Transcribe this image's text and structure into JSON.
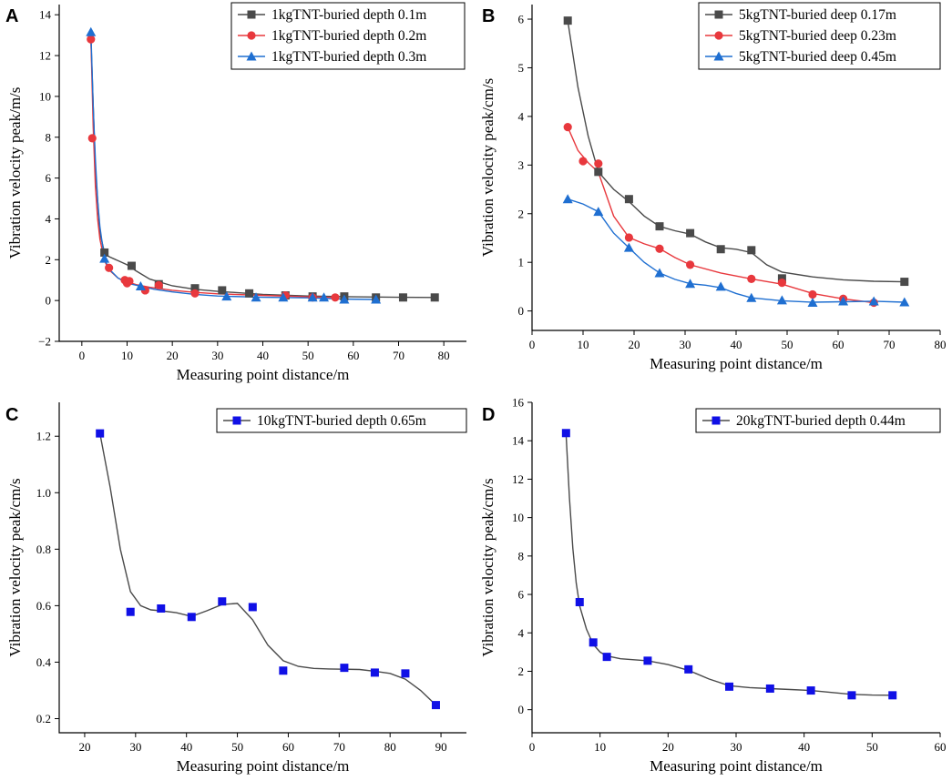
{
  "chart_data": [
    {
      "type": "line",
      "panel": "A",
      "xlabel": "Measuring point distance/m",
      "ylabel": "Vibration velocity peak/m/s",
      "xlim": [
        -5,
        85
      ],
      "ylim": [
        -2,
        14.5
      ],
      "xticks": [
        0,
        10,
        20,
        30,
        40,
        50,
        60,
        70,
        80
      ],
      "yticks": [
        -2,
        0,
        2,
        4,
        6,
        8,
        10,
        12,
        14
      ],
      "legend_position": "top-right",
      "series": [
        {
          "name": "1kgTNT-buried depth 0.1m",
          "color": "#4a4a4a",
          "marker": "square",
          "x": [
            5,
            11,
            17,
            25,
            31,
            37,
            45,
            51,
            58,
            65,
            71,
            78
          ],
          "y": [
            2.35,
            1.7,
            0.8,
            0.6,
            0.5,
            0.35,
            0.25,
            0.2,
            0.2,
            0.15,
            0.15,
            0.15
          ]
        },
        {
          "name": "1kgTNT-buried depth 0.2m",
          "color": "#e8383d",
          "marker": "circle",
          "x": [
            2,
            2.3,
            6,
            9.5,
            10,
            10.5,
            14,
            17,
            25,
            45,
            51,
            56
          ],
          "y": [
            12.8,
            7.95,
            1.6,
            1.0,
            0.85,
            0.95,
            0.5,
            0.75,
            0.35,
            0.25,
            0.15,
            0.15
          ]
        },
        {
          "name": "1kgTNT-buried depth 0.3m",
          "color": "#1f6fd1",
          "marker": "triangle",
          "x": [
            2,
            5,
            13,
            32,
            38.5,
            44.5,
            51,
            53.5,
            58,
            65
          ],
          "y": [
            13.15,
            2.05,
            0.7,
            0.2,
            0.15,
            0.15,
            0.15,
            0.15,
            0.05,
            0.05
          ]
        }
      ]
    },
    {
      "type": "line",
      "panel": "B",
      "xlabel": "Measuring point distance/m",
      "ylabel": "Vibration velocity peak/cm/s",
      "xlim": [
        0,
        80
      ],
      "ylim": [
        -0.4,
        6.3
      ],
      "xticks": [
        0,
        10,
        20,
        30,
        40,
        50,
        60,
        70,
        80
      ],
      "yticks": [
        0,
        1,
        2,
        3,
        4,
        5,
        6
      ],
      "legend_position": "top-right",
      "series": [
        {
          "name": "5kgTNT-buried deep 0.17m",
          "color": "#4a4a4a",
          "marker": "square",
          "x": [
            7,
            13,
            19,
            25,
            31,
            37,
            43,
            49,
            73
          ],
          "y": [
            5.97,
            2.86,
            2.3,
            1.74,
            1.6,
            1.27,
            1.25,
            0.67,
            0.6
          ]
        },
        {
          "name": "5kgTNT-buried deep 0.23m",
          "color": "#e8383d",
          "marker": "circle",
          "x": [
            7,
            10,
            13,
            19,
            25,
            31,
            43,
            49,
            55,
            61,
            67
          ],
          "y": [
            3.78,
            3.08,
            3.03,
            1.51,
            1.28,
            0.95,
            0.66,
            0.58,
            0.34,
            0.25,
            0.17
          ]
        },
        {
          "name": "5kgTNT-buried deep 0.45m",
          "color": "#1f6fd1",
          "marker": "triangle",
          "x": [
            7,
            13,
            19,
            25,
            31,
            37,
            43,
            49,
            55,
            61,
            67,
            73
          ],
          "y": [
            2.3,
            2.04,
            1.3,
            0.78,
            0.56,
            0.5,
            0.27,
            0.22,
            0.17,
            0.2,
            0.2,
            0.18
          ]
        }
      ]
    },
    {
      "type": "line",
      "panel": "C",
      "xlabel": "Measuring point distance/m",
      "ylabel": "Vibration velocity peak/cm/s",
      "xlim": [
        15,
        95
      ],
      "ylim": [
        0.15,
        1.32
      ],
      "xticks": [
        20,
        30,
        40,
        50,
        60,
        70,
        80,
        90
      ],
      "yticks": [
        0.2,
        0.4,
        0.6,
        0.8,
        1.0,
        1.2
      ],
      "ytick_labels": [
        "0.2",
        "0.4",
        "0.6",
        "0.8",
        "1.0",
        "1.2"
      ],
      "legend_position": "top-right",
      "series": [
        {
          "name": "10kgTNT-buried depth 0.65m",
          "color": "#1010e6",
          "line_color": "#4a4a4a",
          "marker": "square",
          "x": [
            23,
            29,
            35,
            41,
            47,
            53,
            59,
            71,
            77,
            83,
            89
          ],
          "y": [
            1.21,
            0.578,
            0.59,
            0.56,
            0.615,
            0.595,
            0.37,
            0.38,
            0.363,
            0.36,
            0.248
          ]
        }
      ]
    },
    {
      "type": "line",
      "panel": "D",
      "xlabel": "Measuring point distance/m",
      "ylabel": "Vibration velocity peak/cm/s",
      "xlim": [
        0,
        60
      ],
      "ylim": [
        -1.2,
        16
      ],
      "xticks": [
        0,
        10,
        20,
        30,
        40,
        50,
        60
      ],
      "yticks": [
        0,
        2,
        4,
        6,
        8,
        10,
        12,
        14,
        16
      ],
      "legend_position": "top-right",
      "series": [
        {
          "name": "20kgTNT-buried depth 0.44m",
          "color": "#1010e6",
          "line_color": "#4a4a4a",
          "marker": "square",
          "x": [
            5,
            7,
            9,
            11,
            17,
            23,
            29,
            35,
            41,
            47,
            53
          ],
          "y": [
            14.4,
            5.6,
            3.5,
            2.75,
            2.55,
            2.1,
            1.2,
            1.1,
            1.0,
            0.75,
            0.75
          ]
        }
      ]
    }
  ],
  "curves": {
    "A": [
      {
        "x": [
          2,
          3,
          4,
          5,
          6,
          8,
          10,
          12,
          15,
          20,
          25,
          30,
          40,
          50,
          60,
          70,
          78
        ],
        "y": [
          12.8,
          6.5,
          3.3,
          2.35,
          2.15,
          1.95,
          1.75,
          1.45,
          1.05,
          0.72,
          0.55,
          0.45,
          0.3,
          0.22,
          0.18,
          0.16,
          0.15
        ]
      },
      {
        "x": [
          2,
          2.5,
          3,
          3.5,
          4,
          5,
          6,
          8,
          10,
          12,
          15,
          20,
          25,
          30,
          40,
          50,
          56
        ],
        "y": [
          12.8,
          8.5,
          5.6,
          4.0,
          3.0,
          1.95,
          1.5,
          1.1,
          0.92,
          0.78,
          0.65,
          0.5,
          0.4,
          0.33,
          0.25,
          0.18,
          0.15
        ]
      },
      {
        "x": [
          2,
          2.5,
          3,
          3.5,
          4,
          5,
          6,
          8,
          10,
          13,
          16,
          20,
          25,
          30,
          40,
          50,
          58,
          65
        ],
        "y": [
          13.15,
          9.5,
          6.9,
          4.9,
          3.6,
          2.05,
          1.55,
          1.1,
          0.85,
          0.7,
          0.55,
          0.42,
          0.3,
          0.22,
          0.16,
          0.13,
          0.07,
          0.05
        ]
      }
    ],
    "B": [
      {
        "x": [
          7,
          9,
          11,
          13,
          16,
          19,
          22,
          25,
          28,
          31,
          34,
          37,
          40,
          43,
          46,
          49,
          55,
          61,
          67,
          73
        ],
        "y": [
          5.97,
          4.6,
          3.6,
          2.86,
          2.5,
          2.25,
          1.95,
          1.74,
          1.65,
          1.58,
          1.42,
          1.3,
          1.27,
          1.2,
          0.95,
          0.8,
          0.7,
          0.64,
          0.61,
          0.6
        ]
      },
      {
        "x": [
          7,
          9,
          11,
          13,
          16,
          19,
          22,
          25,
          28,
          31,
          37,
          43,
          49,
          55,
          61,
          67
        ],
        "y": [
          3.78,
          3.3,
          3.05,
          2.85,
          1.95,
          1.51,
          1.38,
          1.28,
          1.1,
          0.95,
          0.78,
          0.66,
          0.55,
          0.36,
          0.25,
          0.17
        ]
      },
      {
        "x": [
          7,
          10,
          13,
          16,
          19,
          22,
          25,
          28,
          31,
          34,
          37,
          40,
          43,
          49,
          55,
          61,
          67,
          73
        ],
        "y": [
          2.3,
          2.2,
          2.04,
          1.6,
          1.3,
          1.0,
          0.78,
          0.65,
          0.56,
          0.53,
          0.48,
          0.36,
          0.27,
          0.21,
          0.18,
          0.19,
          0.2,
          0.18
        ]
      }
    ],
    "C": [
      {
        "x": [
          23,
          25,
          27,
          29,
          31,
          33,
          35,
          38,
          41,
          44,
          47,
          50,
          53,
          56,
          59,
          62,
          65,
          68,
          71,
          74,
          77,
          80,
          83,
          86,
          89
        ],
        "y": [
          1.21,
          1.02,
          0.8,
          0.65,
          0.6,
          0.585,
          0.582,
          0.575,
          0.562,
          0.582,
          0.604,
          0.608,
          0.55,
          0.46,
          0.405,
          0.385,
          0.378,
          0.376,
          0.375,
          0.374,
          0.368,
          0.36,
          0.34,
          0.3,
          0.248
        ]
      }
    ],
    "D": [
      {
        "x": [
          5,
          5.5,
          6,
          6.5,
          7,
          8,
          9,
          10,
          11,
          13,
          15,
          17,
          20,
          23,
          26,
          29,
          32,
          35,
          38,
          41,
          44,
          47,
          50,
          53
        ],
        "y": [
          14.4,
          11.0,
          8.4,
          6.6,
          5.4,
          4.2,
          3.4,
          3.0,
          2.8,
          2.65,
          2.6,
          2.55,
          2.35,
          2.05,
          1.6,
          1.25,
          1.15,
          1.1,
          1.05,
          1.0,
          0.9,
          0.8,
          0.76,
          0.75
        ]
      }
    ]
  }
}
